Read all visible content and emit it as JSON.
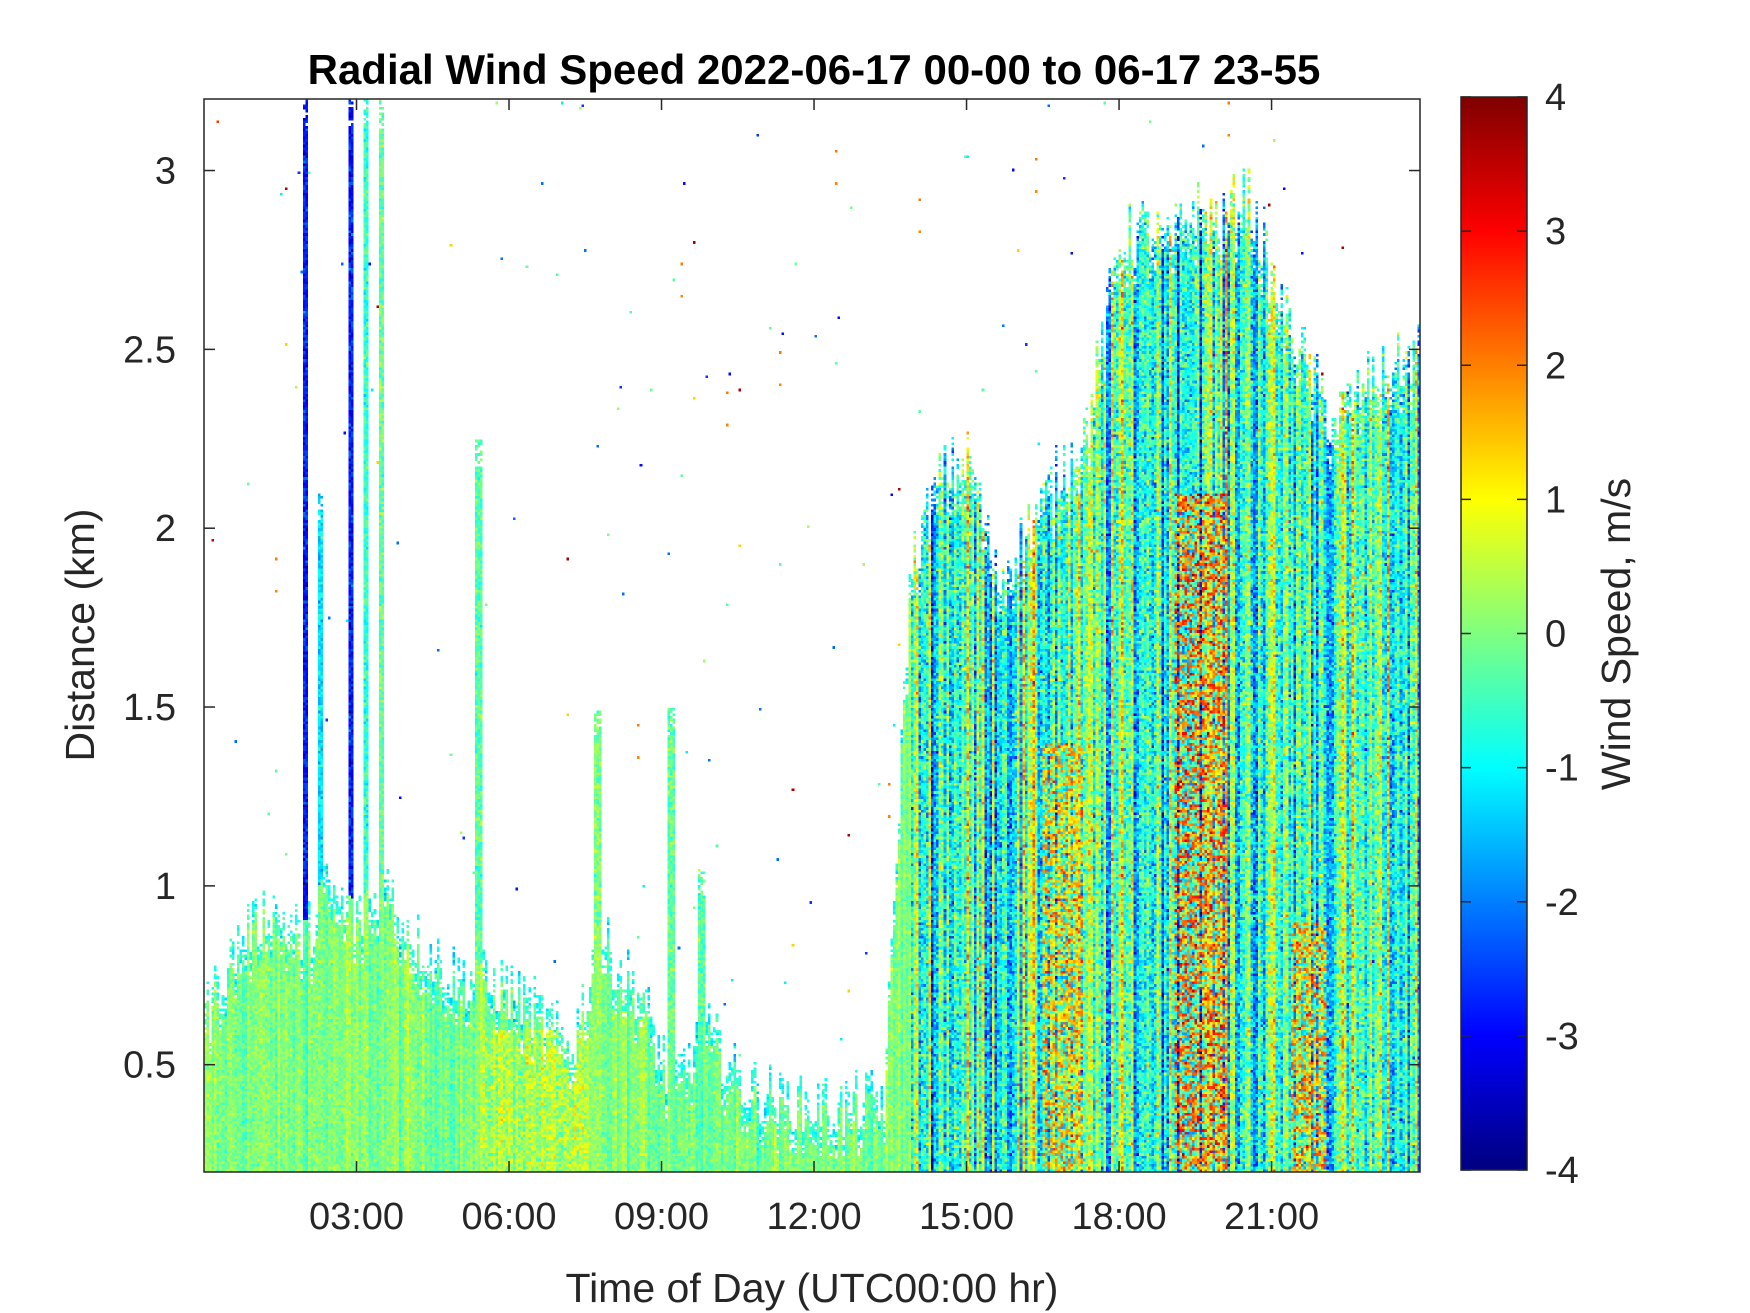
{
  "chart_data": {
    "type": "heatmap",
    "title": "Radial Wind Speed 2022-06-17 00-00 to 06-17 23-55",
    "xlabel": "Time of Day (UTC00:00 hr)",
    "ylabel": "Distance (km)",
    "xlim_hours": [
      0.0,
      23.92
    ],
    "ylim_km": [
      0.2,
      3.2
    ],
    "x_ticks": [
      {
        "value": 3,
        "label": "03:00"
      },
      {
        "value": 6,
        "label": "06:00"
      },
      {
        "value": 9,
        "label": "09:00"
      },
      {
        "value": 12,
        "label": "12:00"
      },
      {
        "value": 15,
        "label": "15:00"
      },
      {
        "value": 18,
        "label": "18:00"
      },
      {
        "value": 21,
        "label": "21:00"
      }
    ],
    "y_ticks": [
      {
        "value": 0.5,
        "label": "0.5"
      },
      {
        "value": 1,
        "label": "1"
      },
      {
        "value": 1.5,
        "label": "1.5"
      },
      {
        "value": 2,
        "label": "2"
      },
      {
        "value": 2.5,
        "label": "2.5"
      },
      {
        "value": 3,
        "label": "3"
      }
    ],
    "colorbar": {
      "label": "Wind Speed, m/s",
      "colormap": "jet",
      "clim": [
        -4,
        4
      ],
      "ticks": [
        {
          "value": -4,
          "label": "-4"
        },
        {
          "value": -3,
          "label": "-3"
        },
        {
          "value": -2,
          "label": "-2"
        },
        {
          "value": -1,
          "label": "-1"
        },
        {
          "value": 0,
          "label": "0"
        },
        {
          "value": 1,
          "label": "1"
        },
        {
          "value": 2,
          "label": "2"
        },
        {
          "value": 3,
          "label": "3"
        },
        {
          "value": 4,
          "label": "4"
        }
      ],
      "stops": [
        "#00007f",
        "#0000ff",
        "#007fff",
        "#00ffff",
        "#7fff7f",
        "#ffff00",
        "#ff7f00",
        "#ff0000",
        "#7f0000"
      ]
    },
    "valid_data_top_km": [
      [
        0.0,
        0.65
      ],
      [
        0.7,
        0.85
      ],
      [
        1.3,
        0.95
      ],
      [
        2.0,
        0.85
      ],
      [
        2.4,
        1.0
      ],
      [
        3.0,
        0.9
      ],
      [
        3.6,
        1.0
      ],
      [
        4.2,
        0.85
      ],
      [
        5.0,
        0.75
      ],
      [
        6.0,
        0.72
      ],
      [
        6.6,
        0.65
      ],
      [
        7.2,
        0.55
      ],
      [
        7.8,
        0.85
      ],
      [
        8.6,
        0.7
      ],
      [
        9.2,
        0.45
      ],
      [
        9.9,
        0.6
      ],
      [
        10.6,
        0.45
      ],
      [
        11.5,
        0.4
      ],
      [
        12.5,
        0.38
      ],
      [
        13.4,
        0.42
      ],
      [
        13.9,
        1.9
      ],
      [
        14.5,
        2.15
      ],
      [
        15.1,
        2.2
      ],
      [
        15.6,
        1.85
      ],
      [
        16.2,
        2.0
      ],
      [
        16.8,
        2.15
      ],
      [
        17.4,
        2.3
      ],
      [
        18.0,
        2.8
      ],
      [
        18.5,
        2.85
      ],
      [
        19.0,
        2.8
      ],
      [
        19.5,
        2.9
      ],
      [
        20.0,
        2.85
      ],
      [
        20.5,
        2.95
      ],
      [
        21.0,
        2.7
      ],
      [
        21.6,
        2.5
      ],
      [
        22.2,
        2.3
      ],
      [
        22.8,
        2.4
      ],
      [
        23.3,
        2.45
      ],
      [
        23.92,
        2.5
      ]
    ],
    "spikes": [
      {
        "x_hours": 2.0,
        "top_km": 3.2,
        "mean_ms": -2.8
      },
      {
        "x_hours": 2.3,
        "top_km": 2.1,
        "mean_ms": -1.2
      },
      {
        "x_hours": 2.9,
        "top_km": 3.2,
        "mean_ms": -2.8
      },
      {
        "x_hours": 3.2,
        "top_km": 3.2,
        "mean_ms": -0.6
      },
      {
        "x_hours": 3.5,
        "top_km": 3.2,
        "mean_ms": -0.2
      },
      {
        "x_hours": 5.4,
        "top_km": 2.25,
        "mean_ms": -0.3
      },
      {
        "x_hours": 7.75,
        "top_km": 1.5,
        "mean_ms": 0.0
      },
      {
        "x_hours": 9.2,
        "top_km": 1.5,
        "mean_ms": -0.2
      },
      {
        "x_hours": 9.8,
        "top_km": 1.05,
        "mean_ms": -0.3
      }
    ],
    "intense_bands": [
      {
        "x_start": 19.1,
        "x_end": 20.1,
        "y_start": 0.2,
        "y_end": 2.1,
        "mean_ms": 2.2
      },
      {
        "x_start": 16.5,
        "x_end": 17.3,
        "y_start": 0.2,
        "y_end": 1.4,
        "mean_ms": 1.6
      },
      {
        "x_start": 21.4,
        "x_end": 22.1,
        "y_start": 0.2,
        "y_end": 0.9,
        "mean_ms": 1.8
      }
    ]
  }
}
